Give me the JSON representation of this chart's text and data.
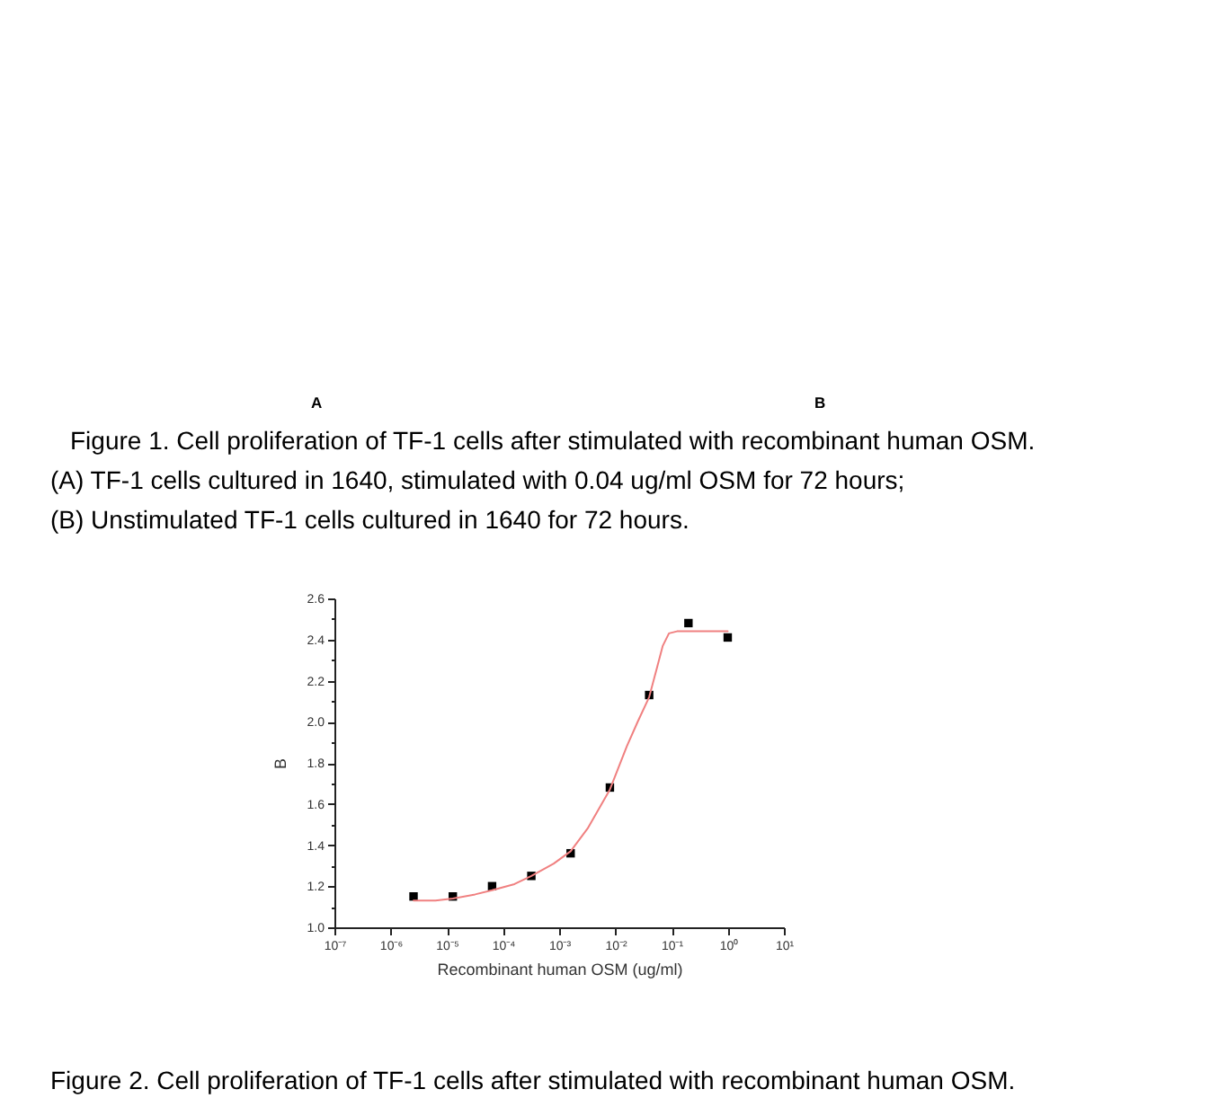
{
  "chart_data": {
    "type": "scatter",
    "xlabel": "Recombinant human OSM (ug/ml)",
    "ylabel": "B",
    "log": "x",
    "marker": "square",
    "line_style": "solid",
    "xlim": [
      1e-07,
      10
    ],
    "xticks": [
      {
        "value": 1e-07,
        "label": "10⁻⁷"
      },
      {
        "value": 1e-06,
        "label": "10⁻⁶"
      },
      {
        "value": 1e-05,
        "label": "10⁻⁵"
      },
      {
        "value": 0.0001,
        "label": "10⁻⁴"
      },
      {
        "value": 0.001,
        "label": "10⁻³"
      },
      {
        "value": 0.01,
        "label": "10⁻²"
      },
      {
        "value": 0.1,
        "label": "10⁻¹"
      },
      {
        "value": 1,
        "label": "10⁰"
      },
      {
        "value": 10,
        "label": "10¹"
      }
    ],
    "ylim": [
      1.0,
      2.6
    ],
    "yticks": [
      {
        "value": 1.0,
        "label": "1.0"
      },
      {
        "value": 1.1,
        "label": null
      },
      1.2,
      {
        "value": 1.3,
        "label": null
      },
      1.4,
      {
        "value": 1.5,
        "label": null
      },
      1.6,
      {
        "value": 1.7,
        "label": null
      },
      1.8,
      {
        "value": 1.9,
        "label": null
      },
      {
        "value": 2.0,
        "label": "2.0"
      },
      {
        "value": 2.1,
        "label": null
      },
      2.2,
      {
        "value": 2.3,
        "label": null
      },
      2.4,
      {
        "value": 2.5,
        "label": null
      },
      2.6
    ],
    "series": [
      {
        "color": "#000000",
        "x": [
          2.56e-06,
          1.28e-05,
          6.4e-05,
          0.00032,
          0.0016,
          0.008,
          0.04,
          0.2,
          1
        ],
        "values": [
          1.15,
          1.15,
          1.2,
          1.25,
          1.36,
          1.68,
          2.13,
          2.48,
          2.41
        ]
      },
      {
        "type": "line",
        "color": "#f08080",
        "marker": "none",
        "x": [
          2.56e-06,
          6.3e-06,
          1.28e-05,
          3.2e-05,
          6.4e-05,
          0.00016,
          0.00032,
          0.0008,
          0.0016,
          0.0032,
          0.008,
          0.016,
          0.025,
          0.04,
          0.056,
          0.07,
          0.09,
          0.125,
          0.32,
          1
        ],
        "values": [
          1.13,
          1.13,
          1.14,
          1.16,
          1.18,
          1.21,
          1.25,
          1.31,
          1.37,
          1.48,
          1.67,
          1.88,
          2.0,
          2.12,
          2.27,
          2.37,
          2.43,
          2.44,
          2.44,
          2.44
        ]
      }
    ],
    "annotations": [
      "A",
      "B",
      "Figure 1. Cell proliferation of TF-1 cells after stimulated with recombinant human OSM.",
      "(A) TF-1 cells cultured in 1640, stimulated with 0.04 ug/ml OSM for 72 hours;",
      "(B) Unstimulated TF-1 cells cultured in 1640 for 72 hours.",
      "Figure 2. Cell proliferation of TF-1 cells after stimulated with recombinant human OSM."
    ]
  }
}
